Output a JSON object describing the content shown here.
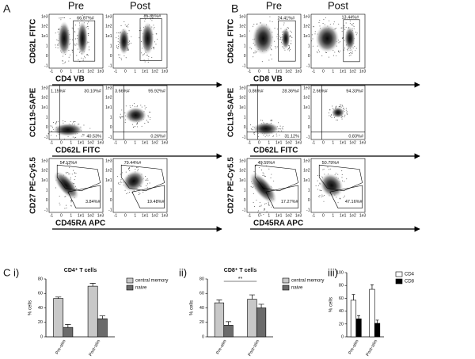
{
  "flow_xticks": [
    "-1",
    "0",
    "1",
    "1e1",
    "1e2",
    "1e3"
  ],
  "flow_yticks": [
    "1e3",
    "1e2",
    "1e1",
    "1",
    "0",
    "-1"
  ],
  "panels": [
    {
      "label": "A",
      "pre": "Pre",
      "post": "Post",
      "rows": [
        {
          "y_label": "CD62L FITC",
          "x_label": "CD4 VB",
          "pre": [
            "66.07%#"
          ],
          "post": [
            "85.85%#"
          ]
        },
        {
          "y_label": "CCL19-SAPE",
          "x_label": "CD62L FITC",
          "pre": [
            "1.15%#",
            "30.10%#",
            "40.53%"
          ],
          "post": [
            "3.66%#",
            "95.92%#",
            "0.26%#"
          ]
        },
        {
          "y_label": "CD27 PE-Cy5.5",
          "x_label": "CD45RA APC",
          "pre": [
            "54.12%#",
            "3.84%#"
          ],
          "post": [
            "79.44%#",
            "19.48%#"
          ]
        }
      ]
    },
    {
      "label": "B",
      "pre": "Pre",
      "post": "Post",
      "rows": [
        {
          "y_label": "CD62L FITC",
          "x_label": "CD8 VB",
          "pre": [
            "24.41%#"
          ],
          "post": [
            "13.44%#"
          ]
        },
        {
          "y_label": "CCL19-SAPE",
          "x_label": "CD62L FITC",
          "pre": [
            "0.86%#",
            "28.36%#",
            "31.12%"
          ],
          "post": [
            "2.66%#",
            "94.33%#",
            "0.83%#"
          ]
        },
        {
          "y_label": "CD27 PE-Cy5.5",
          "x_label": "CD45RA APC",
          "pre": [
            "49.59%#",
            "17.27%#"
          ],
          "post": [
            "50.79%#",
            "47.16%#"
          ]
        }
      ]
    }
  ],
  "chart_data": [
    {
      "type": "bar",
      "label": "C i)",
      "title": "CD4⁺ T cells",
      "y_label": "% cells",
      "categories": [
        "Pre-stim",
        "Post-stim"
      ],
      "series": [
        {
          "name": "central memory",
          "color": "#c8c8c8",
          "values": [
            53,
            70
          ],
          "errors": [
            2,
            4
          ]
        },
        {
          "name": "naive",
          "color": "#6b6b6b",
          "values": [
            13,
            25
          ],
          "errors": [
            4,
            4
          ]
        }
      ],
      "ylim": [
        0,
        80
      ],
      "yticks": [
        0,
        20,
        40,
        60,
        80
      ],
      "legend": "right"
    },
    {
      "type": "bar",
      "label": "ii)",
      "title": "CD8⁺ T cells",
      "y_label": "% cells",
      "annotation": "**",
      "categories": [
        "Pre-stim",
        "Post-stim"
      ],
      "series": [
        {
          "name": "central memory",
          "color": "#c8c8c8",
          "values": [
            47,
            52
          ],
          "errors": [
            4,
            6
          ]
        },
        {
          "name": "naive",
          "color": "#6b6b6b",
          "values": [
            16,
            40
          ],
          "errors": [
            5,
            5
          ]
        }
      ],
      "ylim": [
        0,
        80
      ],
      "yticks": [
        0,
        20,
        40,
        60,
        80
      ],
      "legend": "right"
    },
    {
      "type": "bar",
      "label": "iii)",
      "y_label": "% cells",
      "categories": [
        "Pre-stim",
        "Post-stim"
      ],
      "series": [
        {
          "name": "CD4",
          "color": "#ffffff",
          "values": [
            57,
            74
          ],
          "errors": [
            9,
            7
          ]
        },
        {
          "name": "CD8",
          "color": "#000000",
          "values": [
            28,
            21
          ],
          "errors": [
            5,
            5
          ]
        }
      ],
      "ylim": [
        0,
        100
      ],
      "yticks": [
        0,
        20,
        40,
        60,
        80,
        100
      ],
      "legend": "right"
    }
  ]
}
